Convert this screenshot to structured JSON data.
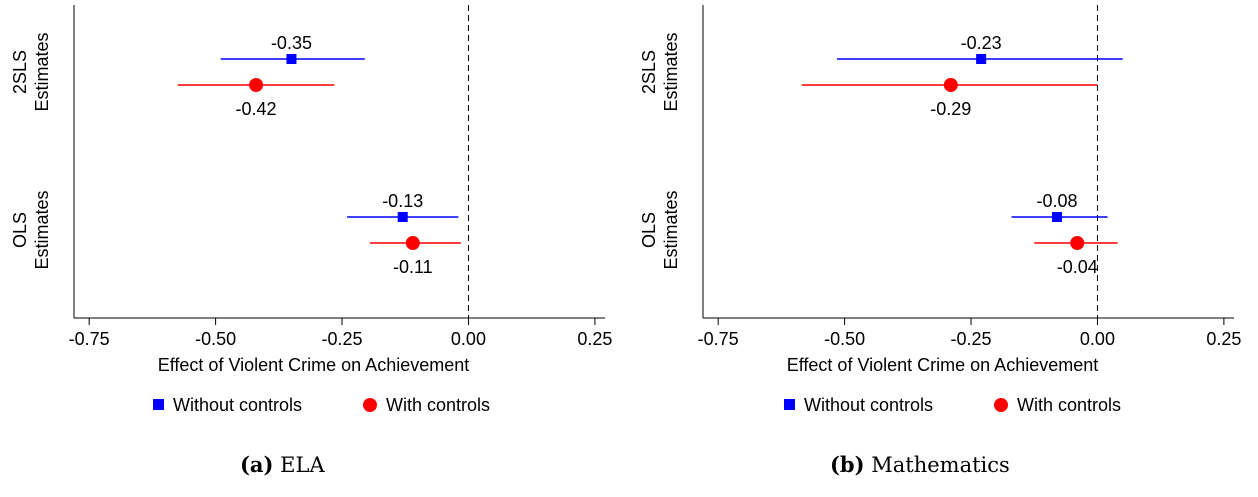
{
  "legend": {
    "without_controls": "Without controls",
    "with_controls": "With controls"
  },
  "colors": {
    "without_controls": "#0000ff",
    "with_controls": "#ff0000",
    "zero_line": "#000000"
  },
  "chart_data": [
    {
      "type": "scatter",
      "subtitle": "(a) ELA",
      "caption_letter": "(a)",
      "caption_text": "ELA",
      "xlabel": "Effect of Violent Crime on Achievement",
      "xlim": [
        -0.78,
        0.27
      ],
      "xticks": [
        -0.75,
        -0.5,
        -0.25,
        0.0,
        0.25
      ],
      "xtick_labels": [
        "-0.75",
        "-0.50",
        "-0.25",
        "0.00",
        "0.25"
      ],
      "reference_line": 0.0,
      "groups": [
        {
          "label_line1": "2SLS",
          "label_line2": "Estimates"
        },
        {
          "label_line1": "OLS",
          "label_line2": "Estimates"
        }
      ],
      "series": [
        {
          "name": "Without controls",
          "marker": "square",
          "points": [
            {
              "group": "2SLS",
              "estimate": -0.35,
              "ci_low": -0.49,
              "ci_high": -0.205,
              "label": "-0.35"
            },
            {
              "group": "OLS",
              "estimate": -0.13,
              "ci_low": -0.24,
              "ci_high": -0.02,
              "label": "-0.13"
            }
          ]
        },
        {
          "name": "With controls",
          "marker": "circle",
          "points": [
            {
              "group": "2SLS",
              "estimate": -0.42,
              "ci_low": -0.575,
              "ci_high": -0.265,
              "label": "-0.42"
            },
            {
              "group": "OLS",
              "estimate": -0.11,
              "ci_low": -0.195,
              "ci_high": -0.015,
              "label": "-0.11"
            }
          ]
        }
      ]
    },
    {
      "type": "scatter",
      "subtitle": "(b) Mathematics",
      "caption_letter": "(b)",
      "caption_text": "Mathematics",
      "xlabel": "Effect of Violent Crime on Achievement",
      "xlim": [
        -0.78,
        0.27
      ],
      "xticks": [
        -0.75,
        -0.5,
        -0.25,
        0.0,
        0.25
      ],
      "xtick_labels": [
        "-0.75",
        "-0.50",
        "-0.25",
        "0.00",
        "0.25"
      ],
      "reference_line": 0.0,
      "groups": [
        {
          "label_line1": "2SLS",
          "label_line2": "Estimates"
        },
        {
          "label_line1": "OLS",
          "label_line2": "Estimates"
        }
      ],
      "series": [
        {
          "name": "Without controls",
          "marker": "square",
          "points": [
            {
              "group": "2SLS",
              "estimate": -0.23,
              "ci_low": -0.515,
              "ci_high": 0.05,
              "label": "-0.23"
            },
            {
              "group": "OLS",
              "estimate": -0.08,
              "ci_low": -0.17,
              "ci_high": 0.02,
              "label": "-0.08"
            }
          ]
        },
        {
          "name": "With controls",
          "marker": "circle",
          "points": [
            {
              "group": "2SLS",
              "estimate": -0.29,
              "ci_low": -0.585,
              "ci_high": 0.0,
              "label": "-0.29"
            },
            {
              "group": "OLS",
              "estimate": -0.04,
              "ci_low": -0.125,
              "ci_high": 0.04,
              "label": "-0.04"
            }
          ]
        }
      ]
    }
  ]
}
